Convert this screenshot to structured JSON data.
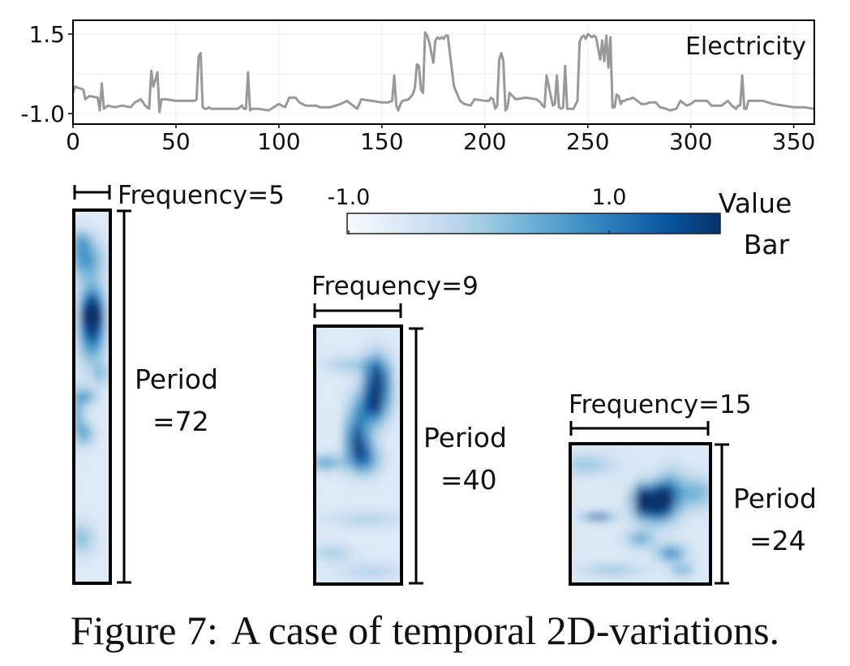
{
  "chart_data": [
    {
      "type": "line",
      "title": "Electricity",
      "xlim": [
        0,
        360
      ],
      "ylim": [
        -1.0,
        1.5
      ],
      "x_ticks": [
        "0",
        "50",
        "100",
        "150",
        "200",
        "250",
        "300",
        "350"
      ],
      "x_tick_values": [
        0,
        50,
        100,
        150,
        200,
        250,
        300,
        350
      ],
      "y_ticks": [
        "1.5",
        "-1.0"
      ],
      "y_tick_values": [
        1.5,
        -1.0
      ],
      "grid": true,
      "series_color": "#999999",
      "x": [
        0,
        1,
        3,
        5,
        6,
        8,
        12,
        13,
        14,
        15,
        17,
        20,
        24,
        28,
        30,
        33,
        35,
        37,
        38,
        39,
        40,
        41,
        42,
        43,
        45,
        50,
        55,
        59,
        60,
        61,
        62,
        63,
        64,
        65,
        66,
        67,
        70,
        75,
        80,
        82,
        83,
        84,
        85,
        86,
        87,
        88,
        90,
        95,
        100,
        103,
        105,
        108,
        110,
        113,
        115,
        118,
        120,
        125,
        130,
        133,
        135,
        138,
        140,
        145,
        150,
        153,
        155,
        156,
        157,
        158,
        159,
        160,
        163,
        165,
        166,
        167,
        168,
        169,
        170,
        171,
        172,
        173,
        175,
        176,
        177,
        178,
        179,
        180,
        181,
        182,
        185,
        188,
        190,
        193,
        195,
        200,
        202,
        203,
        204,
        205,
        206,
        207,
        208,
        209,
        210,
        211,
        212,
        215,
        220,
        225,
        226,
        227,
        228,
        229,
        230,
        233,
        234,
        235,
        236,
        237,
        238,
        239,
        240,
        243,
        245,
        246,
        247,
        248,
        249,
        250,
        251,
        252,
        253,
        254,
        255,
        256,
        257,
        258,
        259,
        260,
        261,
        262,
        263,
        264,
        265,
        266,
        267,
        268,
        269,
        270,
        272,
        274,
        276,
        278,
        280,
        283,
        285,
        288,
        290,
        293,
        295,
        298,
        300,
        302,
        305,
        308,
        310,
        313,
        315,
        318,
        320,
        322,
        323,
        324,
        325,
        326,
        327,
        328,
        330,
        335,
        340,
        345,
        350,
        355,
        360
      ],
      "y": [
        -0.35,
        -0.15,
        -0.2,
        -0.25,
        -0.55,
        -0.45,
        -0.5,
        -0.9,
        -0.05,
        -0.85,
        -0.75,
        -0.8,
        -0.75,
        -0.8,
        -0.65,
        -0.55,
        -0.75,
        -0.85,
        0.35,
        -0.15,
        0.05,
        0.3,
        -0.95,
        -0.55,
        -0.55,
        -0.6,
        -0.6,
        -0.6,
        -0.55,
        0.8,
        0.9,
        -0.8,
        -0.85,
        -0.85,
        -0.8,
        -0.85,
        -0.85,
        -0.85,
        -0.85,
        -0.75,
        -0.85,
        -0.85,
        0.3,
        -0.9,
        -0.85,
        -0.85,
        -0.85,
        -0.9,
        -0.7,
        -0.8,
        -0.5,
        -0.5,
        -0.65,
        -0.75,
        -0.75,
        -0.75,
        -0.8,
        -0.8,
        -0.7,
        -0.6,
        -0.7,
        -0.85,
        -0.55,
        -0.6,
        -0.65,
        -0.65,
        -0.6,
        0.2,
        -0.75,
        -0.9,
        -0.7,
        -0.6,
        -0.55,
        -0.4,
        -0.2,
        0.55,
        0.5,
        -0.25,
        -0.35,
        1.55,
        1.45,
        1.25,
        0.6,
        1.3,
        1.4,
        1.35,
        1.4,
        1.35,
        1.45,
        1.45,
        -0.15,
        -0.6,
        -0.7,
        -0.75,
        -0.55,
        -0.6,
        -0.6,
        -0.5,
        -0.55,
        -0.85,
        -0.75,
        0.7,
        0.9,
        0.65,
        -0.9,
        -0.8,
        -0.35,
        -0.55,
        -0.5,
        -0.55,
        -0.6,
        -0.65,
        -0.75,
        -0.8,
        0.2,
        -0.75,
        -0.7,
        0.2,
        -0.8,
        -0.85,
        -0.8,
        0.5,
        -0.85,
        -0.85,
        -0.6,
        1.25,
        1.4,
        1.45,
        1.35,
        1.5,
        1.45,
        1.4,
        1.45,
        1.4,
        1.05,
        0.7,
        1.3,
        0.65,
        1.45,
        0.45,
        1.4,
        -0.8,
        -0.8,
        -0.4,
        -0.45,
        -0.7,
        -0.6,
        -0.6,
        -0.55,
        -0.55,
        -0.5,
        -0.6,
        -0.7,
        -0.7,
        -0.65,
        -0.65,
        -0.8,
        -0.85,
        -0.9,
        -0.85,
        -0.6,
        -0.75,
        -0.7,
        -0.6,
        -0.6,
        -0.6,
        -0.75,
        -0.75,
        -0.75,
        -0.6,
        -0.75,
        -0.85,
        -0.75,
        -0.75,
        0.2,
        -0.85,
        -0.85,
        -0.6,
        -0.6,
        -0.6,
        -0.7,
        -0.75,
        -0.8,
        -0.8,
        -0.85
      ]
    },
    {
      "type": "heatmap",
      "frequency_label": "Frequency=5",
      "period_label": "Period",
      "period_value": "=72",
      "rows": 72,
      "cols": 5,
      "blobs": [
        [
          0.5,
          0.3,
          0.25,
          0.07,
          0.8
        ],
        [
          0.5,
          0.28,
          0.16,
          0.03,
          0.65
        ],
        [
          0.35,
          0.6,
          0.15,
          0.02,
          0.35
        ],
        [
          0.35,
          0.5,
          0.2,
          0.015,
          0.35
        ],
        [
          0.3,
          0.13,
          0.35,
          0.035,
          0.45
        ],
        [
          0.1,
          0.55,
          0.15,
          0.05,
          0.35
        ],
        [
          0.2,
          0.88,
          0.25,
          0.03,
          0.3
        ],
        [
          0.75,
          0.44,
          0.15,
          0.02,
          0.25
        ],
        [
          0.2,
          0.08,
          0.2,
          0.02,
          0.3
        ]
      ],
      "base": 0.13
    },
    {
      "type": "heatmap",
      "frequency_label": "Frequency=9",
      "period_label": "Period",
      "period_value": "=40",
      "rows": 40,
      "cols": 9,
      "blobs": [
        [
          0.72,
          0.22,
          0.1,
          0.07,
          0.95
        ],
        [
          0.65,
          0.32,
          0.12,
          0.05,
          0.55
        ],
        [
          0.52,
          0.45,
          0.1,
          0.05,
          0.55
        ],
        [
          0.58,
          0.52,
          0.12,
          0.04,
          0.5
        ],
        [
          0.45,
          0.4,
          0.06,
          0.08,
          0.4
        ],
        [
          0.12,
          0.53,
          0.15,
          0.02,
          0.45
        ],
        [
          0.2,
          0.88,
          0.15,
          0.02,
          0.25
        ],
        [
          0.6,
          0.75,
          0.3,
          0.02,
          0.2
        ],
        [
          0.4,
          0.15,
          0.2,
          0.02,
          0.25
        ],
        [
          0.65,
          0.95,
          0.25,
          0.02,
          0.2
        ]
      ],
      "base": 0.13
    },
    {
      "type": "heatmap",
      "frequency_label": "Frequency=15",
      "period_label": "Period",
      "period_value": "=24",
      "rows": 24,
      "cols": 15,
      "blobs": [
        [
          0.52,
          0.4,
          0.045,
          0.07,
          0.95
        ],
        [
          0.65,
          0.4,
          0.045,
          0.07,
          0.95
        ],
        [
          0.59,
          0.44,
          0.09,
          0.09,
          0.55
        ],
        [
          0.72,
          0.35,
          0.06,
          0.12,
          0.4
        ],
        [
          0.2,
          0.52,
          0.07,
          0.02,
          0.75
        ],
        [
          0.72,
          0.78,
          0.07,
          0.04,
          0.55
        ],
        [
          0.8,
          0.9,
          0.05,
          0.03,
          0.4
        ],
        [
          0.5,
          0.68,
          0.07,
          0.04,
          0.4
        ],
        [
          0.9,
          0.35,
          0.1,
          0.08,
          0.35
        ],
        [
          0.1,
          0.15,
          0.15,
          0.05,
          0.25
        ],
        [
          0.3,
          0.9,
          0.15,
          0.03,
          0.25
        ]
      ],
      "base": 0.14
    }
  ],
  "value_bar": {
    "min_label": "-1.0",
    "max_label": "1.0",
    "title_line1": "Value",
    "title_line2": "Bar",
    "colors": [
      "#f7fbff",
      "#deebf7",
      "#c6dbef",
      "#9ecae1",
      "#6baed6",
      "#4292c6",
      "#2171b5",
      "#08519c",
      "#08306b"
    ]
  },
  "caption": {
    "label": "Figure 7:",
    "text": "A case of temporal 2D-variations."
  }
}
